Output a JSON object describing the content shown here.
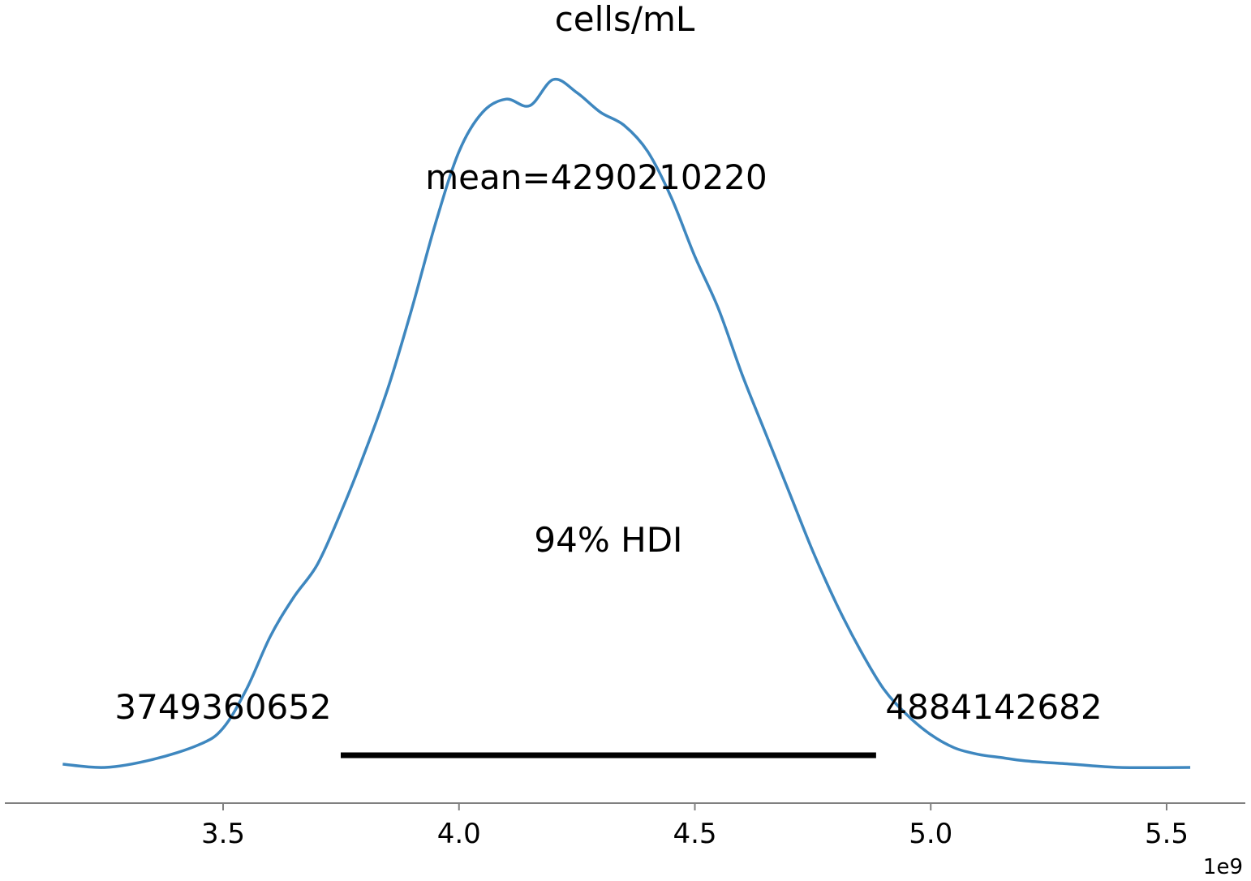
{
  "chart_data": {
    "type": "line",
    "title": "cells/mL",
    "xlabel": "",
    "ylabel": "",
    "x_offset_label": "1e9",
    "xlim": [
      3.1,
      5.55
    ],
    "xticks": [
      3.5,
      4.0,
      4.5,
      5.0,
      5.5
    ],
    "xtick_labels": [
      "3.5",
      "4.0",
      "4.5",
      "5.0",
      "5.5"
    ],
    "y_axis_visible": false,
    "grid": false,
    "series": [
      {
        "color": "#3e87bf",
        "x": [
          3.16,
          3.25,
          3.35,
          3.45,
          3.5,
          3.55,
          3.6,
          3.65,
          3.7,
          3.75,
          3.8,
          3.85,
          3.9,
          3.95,
          4.0,
          4.05,
          4.1,
          4.15,
          4.2,
          4.25,
          4.3,
          4.35,
          4.4,
          4.45,
          4.5,
          4.55,
          4.6,
          4.65,
          4.7,
          4.75,
          4.8,
          4.85,
          4.9,
          4.95,
          5.0,
          5.05,
          5.1,
          5.15,
          5.2,
          5.3,
          5.4,
          5.55
        ],
        "y": [
          0.005,
          0.0,
          0.012,
          0.035,
          0.06,
          0.12,
          0.2,
          0.26,
          0.31,
          0.39,
          0.48,
          0.58,
          0.7,
          0.83,
          0.94,
          1.0,
          1.02,
          1.01,
          1.05,
          1.03,
          1.0,
          0.98,
          0.94,
          0.87,
          0.78,
          0.7,
          0.6,
          0.51,
          0.42,
          0.33,
          0.25,
          0.18,
          0.12,
          0.08,
          0.05,
          0.03,
          0.02,
          0.015,
          0.01,
          0.005,
          0.0,
          0.0
        ]
      }
    ],
    "annotations": {
      "mean_label": "mean=4290210220",
      "hdi_label": "94% HDI",
      "hdi_low_label": "3749360652",
      "hdi_high_label": "4884142682"
    },
    "hdi": [
      3.749360652,
      4.884142682
    ],
    "mean": 4.29021022
  }
}
